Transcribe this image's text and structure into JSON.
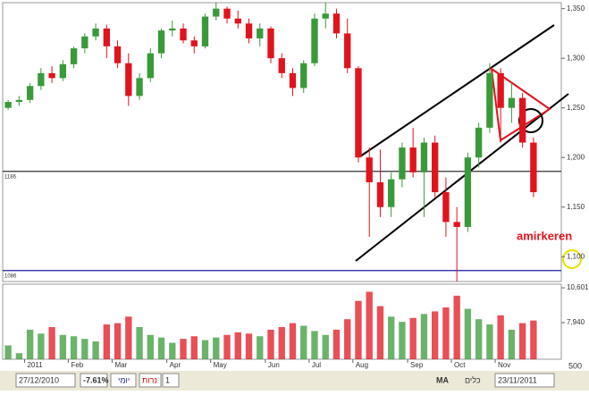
{
  "chart_data": {
    "type": "candlestick",
    "annotation": "amirkeren",
    "up_color": "#3a9a3a",
    "down_color": "#e0141e",
    "ylim": [
      1075,
      1356
    ],
    "yticks": [
      {
        "value": 1100,
        "label": "1,100"
      },
      {
        "value": 1150,
        "label": "1,150"
      },
      {
        "value": 1200,
        "label": "1,200"
      },
      {
        "value": 1250,
        "label": "1,250"
      },
      {
        "value": 1300,
        "label": "1,300"
      },
      {
        "value": 1350,
        "label": "1,350"
      }
    ],
    "hlines": [
      {
        "value": 1186,
        "color": "#333333"
      },
      {
        "value": 1086,
        "color": "#1a1aa0"
      }
    ],
    "volume_ylim": [
      5140,
      10880
    ],
    "volume_yticks": [
      {
        "value": 7940,
        "label": "7,940"
      },
      {
        "value": 10601,
        "label": "10,601"
      }
    ],
    "groups": [
      {
        "label": null,
        "candles": [
          {
            "o": 1250,
            "h": 1258,
            "l": 1248,
            "c": 1256,
            "v": 6200
          },
          {
            "o": 1256,
            "h": 1262,
            "l": 1252,
            "c": 1258,
            "v": 5600
          }
        ]
      },
      {
        "label": "2011",
        "candles": [
          {
            "o": 1258,
            "h": 1275,
            "l": 1255,
            "c": 1272,
            "v": 7400
          },
          {
            "o": 1272,
            "h": 1290,
            "l": 1268,
            "c": 1285,
            "v": 7100
          },
          {
            "o": 1285,
            "h": 1292,
            "l": 1275,
            "c": 1280,
            "v": 7600
          },
          {
            "o": 1280,
            "h": 1298,
            "l": 1277,
            "c": 1294,
            "v": 7000
          }
        ]
      },
      {
        "label": "Feb",
        "candles": [
          {
            "o": 1294,
            "h": 1312,
            "l": 1290,
            "c": 1310,
            "v": 6900
          },
          {
            "o": 1310,
            "h": 1325,
            "l": 1305,
            "c": 1322,
            "v": 6700
          },
          {
            "o": 1322,
            "h": 1335,
            "l": 1318,
            "c": 1330,
            "v": 6500
          },
          {
            "o": 1330,
            "h": 1334,
            "l": 1300,
            "c": 1312,
            "v": 7800
          }
        ]
      },
      {
        "label": "Mar",
        "candles": [
          {
            "o": 1312,
            "h": 1318,
            "l": 1290,
            "c": 1295,
            "v": 7900
          },
          {
            "o": 1295,
            "h": 1305,
            "l": 1252,
            "c": 1262,
            "v": 8400
          },
          {
            "o": 1262,
            "h": 1285,
            "l": 1258,
            "c": 1280,
            "v": 7600
          },
          {
            "o": 1280,
            "h": 1310,
            "l": 1276,
            "c": 1305,
            "v": 7000
          },
          {
            "o": 1305,
            "h": 1330,
            "l": 1300,
            "c": 1328,
            "v": 6800
          }
        ]
      },
      {
        "label": "Apr",
        "candles": [
          {
            "o": 1328,
            "h": 1338,
            "l": 1322,
            "c": 1330,
            "v": 6400
          },
          {
            "o": 1330,
            "h": 1335,
            "l": 1315,
            "c": 1318,
            "v": 6700
          },
          {
            "o": 1318,
            "h": 1322,
            "l": 1305,
            "c": 1312,
            "v": 6900
          },
          {
            "o": 1312,
            "h": 1345,
            "l": 1310,
            "c": 1342,
            "v": 6600
          }
        ]
      },
      {
        "label": "May",
        "candles": [
          {
            "o": 1342,
            "h": 1356,
            "l": 1338,
            "c": 1350,
            "v": 6800
          },
          {
            "o": 1350,
            "h": 1352,
            "l": 1335,
            "c": 1340,
            "v": 7000
          },
          {
            "o": 1340,
            "h": 1348,
            "l": 1330,
            "c": 1335,
            "v": 7200
          },
          {
            "o": 1335,
            "h": 1340,
            "l": 1315,
            "c": 1320,
            "v": 7100
          },
          {
            "o": 1320,
            "h": 1335,
            "l": 1312,
            "c": 1330,
            "v": 6900
          }
        ]
      },
      {
        "label": "Jun",
        "candles": [
          {
            "o": 1330,
            "h": 1332,
            "l": 1295,
            "c": 1300,
            "v": 7400
          },
          {
            "o": 1300,
            "h": 1305,
            "l": 1280,
            "c": 1285,
            "v": 7600
          },
          {
            "o": 1285,
            "h": 1290,
            "l": 1262,
            "c": 1270,
            "v": 7900
          },
          {
            "o": 1270,
            "h": 1298,
            "l": 1265,
            "c": 1295,
            "v": 7700
          }
        ]
      },
      {
        "label": "Jul",
        "candles": [
          {
            "o": 1295,
            "h": 1345,
            "l": 1292,
            "c": 1340,
            "v": 7300
          },
          {
            "o": 1340,
            "h": 1356,
            "l": 1330,
            "c": 1345,
            "v": 7000
          },
          {
            "o": 1345,
            "h": 1350,
            "l": 1320,
            "c": 1325,
            "v": 7400
          },
          {
            "o": 1325,
            "h": 1340,
            "l": 1285,
            "c": 1290,
            "v": 8200
          }
        ]
      },
      {
        "label": "Aug",
        "candles": [
          {
            "o": 1290,
            "h": 1292,
            "l": 1195,
            "c": 1200,
            "v": 9600
          },
          {
            "o": 1200,
            "h": 1210,
            "l": 1120,
            "c": 1175,
            "v": 10300
          },
          {
            "o": 1175,
            "h": 1208,
            "l": 1140,
            "c": 1150,
            "v": 9200
          },
          {
            "o": 1150,
            "h": 1185,
            "l": 1140,
            "c": 1178,
            "v": 8400
          },
          {
            "o": 1178,
            "h": 1215,
            "l": 1170,
            "c": 1210,
            "v": 8000
          }
        ]
      },
      {
        "label": "Sep",
        "candles": [
          {
            "o": 1210,
            "h": 1230,
            "l": 1180,
            "c": 1185,
            "v": 8300
          },
          {
            "o": 1185,
            "h": 1220,
            "l": 1140,
            "c": 1215,
            "v": 8600
          },
          {
            "o": 1215,
            "h": 1222,
            "l": 1160,
            "c": 1165,
            "v": 8800
          },
          {
            "o": 1165,
            "h": 1180,
            "l": 1120,
            "c": 1135,
            "v": 9100
          }
        ]
      },
      {
        "label": "Oct",
        "candles": [
          {
            "o": 1135,
            "h": 1150,
            "l": 1075,
            "c": 1130,
            "v": 10000
          },
          {
            "o": 1130,
            "h": 1205,
            "l": 1125,
            "c": 1200,
            "v": 9000
          },
          {
            "o": 1200,
            "h": 1235,
            "l": 1190,
            "c": 1230,
            "v": 8200
          },
          {
            "o": 1230,
            "h": 1295,
            "l": 1225,
            "c": 1285,
            "v": 7800
          }
        ]
      },
      {
        "label": "Nov",
        "candles": [
          {
            "o": 1285,
            "h": 1290,
            "l": 1215,
            "c": 1250,
            "v": 8500
          },
          {
            "o": 1250,
            "h": 1275,
            "l": 1235,
            "c": 1260,
            "v": 7400
          },
          {
            "o": 1260,
            "h": 1265,
            "l": 1210,
            "c": 1215,
            "v": 7900
          },
          {
            "o": 1215,
            "h": 1220,
            "l": 1160,
            "c": 1165,
            "v": 8100
          }
        ]
      }
    ]
  },
  "toolbar": {
    "start_date": "27/12/2010",
    "change": "-7.61%",
    "period": "יומי",
    "style": "נרות",
    "count": "1",
    "ma": "MA",
    "tools": "כלים",
    "end_date": "23/11/2011",
    "zoom": "500"
  }
}
